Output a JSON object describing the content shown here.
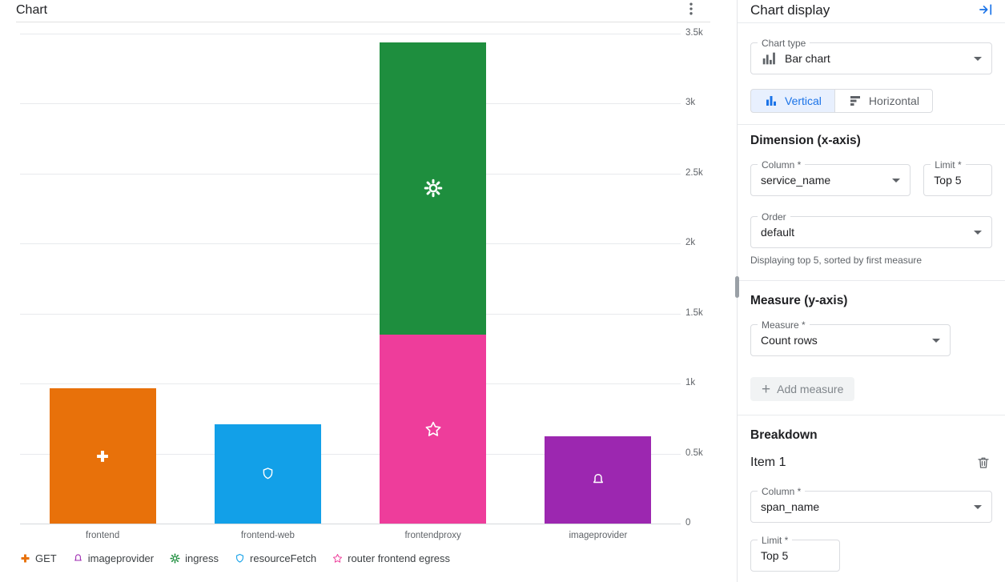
{
  "chart_card": {
    "title": "Chart"
  },
  "chart_data": {
    "type": "bar",
    "stacked": true,
    "title": "Chart",
    "categories": [
      "frontend",
      "frontend-web",
      "frontendproxy",
      "imageprovider"
    ],
    "series": [
      {
        "name": "GET",
        "color": "#e8710a",
        "icon": "cross-icon"
      },
      {
        "name": "imageprovider",
        "color": "#9c27b0",
        "icon": "bell-icon"
      },
      {
        "name": "ingress",
        "color": "#1e8e3e",
        "icon": "gear-icon"
      },
      {
        "name": "resourceFetch",
        "color": "#12a0e8",
        "icon": "shield-icon"
      },
      {
        "name": "router frontend egress",
        "color": "#ee3d9b",
        "icon": "star-icon"
      }
    ],
    "bars": [
      {
        "category": "frontend",
        "segments": [
          {
            "series": "GET",
            "value": 965
          }
        ]
      },
      {
        "category": "frontend-web",
        "segments": [
          {
            "series": "resourceFetch",
            "value": 710
          }
        ]
      },
      {
        "category": "frontendproxy",
        "segments": [
          {
            "series": "router frontend egress",
            "value": 1350
          },
          {
            "series": "ingress",
            "value": 2090
          }
        ]
      },
      {
        "category": "imageprovider",
        "segments": [
          {
            "series": "imageprovider",
            "value": 625
          }
        ]
      }
    ],
    "ylim": [
      0,
      3500
    ],
    "yticks": [
      {
        "value": 0,
        "label": "0"
      },
      {
        "value": 500,
        "label": "0.5k"
      },
      {
        "value": 1000,
        "label": "1k"
      },
      {
        "value": 1500,
        "label": "1.5k"
      },
      {
        "value": 2000,
        "label": "2k"
      },
      {
        "value": 2500,
        "label": "2.5k"
      },
      {
        "value": 3000,
        "label": "3k"
      },
      {
        "value": 3500,
        "label": "3.5k"
      }
    ],
    "grid": true,
    "legend_position": "bottom"
  },
  "panel": {
    "title": "Chart display",
    "chart_type": {
      "label": "Chart type",
      "value": "Bar chart"
    },
    "orientation": {
      "vertical": "Vertical",
      "horizontal": "Horizontal",
      "selected": "Vertical"
    },
    "dimension": {
      "heading": "Dimension (x-axis)",
      "column": {
        "label": "Column *",
        "value": "service_name"
      },
      "limit": {
        "label": "Limit *",
        "value": "Top 5"
      },
      "order": {
        "label": "Order",
        "value": "default"
      },
      "helper": "Displaying top 5, sorted by first measure"
    },
    "measure": {
      "heading": "Measure (y-axis)",
      "measure": {
        "label": "Measure *",
        "value": "Count rows"
      },
      "add_button": "Add measure"
    },
    "breakdown": {
      "heading": "Breakdown",
      "item_title": "Item 1",
      "column": {
        "label": "Column *",
        "value": "span_name"
      },
      "limit": {
        "label": "Limit *",
        "value": "Top 5"
      }
    }
  },
  "ui_colors": {
    "accent": "#1a73e8",
    "selected_toggle_bg": "#e8f0fe",
    "divider": "#e8eaed",
    "text_primary": "#202124",
    "text_secondary": "#5f6368"
  }
}
